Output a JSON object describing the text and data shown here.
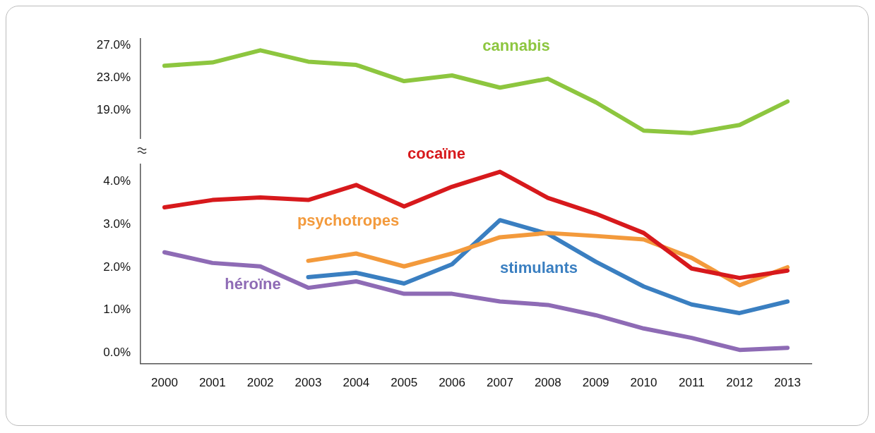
{
  "chart_data": [
    {
      "type": "line",
      "categories": [
        "2000",
        "2001",
        "2002",
        "2003",
        "2004",
        "2005",
        "2006",
        "2007",
        "2008",
        "2009",
        "2010",
        "2011",
        "2012",
        "2013"
      ],
      "series": [
        {
          "name": "cannabis",
          "color": "#8dc63f",
          "values": [
            24.5,
            24.9,
            26.4,
            25.0,
            24.6,
            22.6,
            23.3,
            21.8,
            22.9,
            20.0,
            16.5,
            16.2,
            17.2,
            20.1
          ]
        }
      ],
      "ylim": [
        15.5,
        27.8
      ],
      "yticks": [
        {
          "value": 19,
          "label": "19.0%"
        },
        {
          "value": 23,
          "label": "23.0%"
        },
        {
          "value": 27,
          "label": "27.0%"
        }
      ],
      "tick_labels": "y",
      "grid": false,
      "marker": "none",
      "line_style": "solid"
    },
    {
      "type": "line",
      "categories": [
        "2000",
        "2001",
        "2002",
        "2003",
        "2004",
        "2005",
        "2006",
        "2007",
        "2008",
        "2009",
        "2010",
        "2011",
        "2012",
        "2013"
      ],
      "series": [
        {
          "name": "cocaïne",
          "color": "#d7191c",
          "values": [
            3.4,
            3.57,
            3.63,
            3.57,
            3.92,
            3.42,
            3.88,
            4.23,
            3.62,
            3.25,
            2.8,
            1.97,
            1.75,
            1.92
          ]
        },
        {
          "name": "psychotropes",
          "color": "#f39a3c",
          "values": [
            null,
            null,
            null,
            2.15,
            2.32,
            2.02,
            2.32,
            2.7,
            2.8,
            2.73,
            2.65,
            2.22,
            1.58,
            2.0
          ]
        },
        {
          "name": "stimulants",
          "color": "#3a7fc1",
          "values": [
            null,
            null,
            null,
            1.77,
            1.87,
            1.62,
            2.07,
            3.1,
            2.78,
            2.13,
            1.55,
            1.13,
            0.93,
            1.2
          ]
        },
        {
          "name": "héroïne",
          "color": "#8e6bb5",
          "values": [
            2.35,
            2.1,
            2.02,
            1.52,
            1.67,
            1.38,
            1.38,
            1.2,
            1.12,
            0.88,
            0.57,
            0.35,
            0.07,
            0.12
          ]
        }
      ],
      "ylim": [
        -0.25,
        4.4
      ],
      "yticks": [
        {
          "value": 0,
          "label": "0.0%"
        },
        {
          "value": 1,
          "label": "1.0%"
        },
        {
          "value": 2,
          "label": "2.0%"
        },
        {
          "value": 3,
          "label": "3.0%"
        },
        {
          "value": 4,
          "label": "4.0%"
        }
      ],
      "grid": false,
      "marker": "none",
      "line_style": "solid"
    }
  ]
}
